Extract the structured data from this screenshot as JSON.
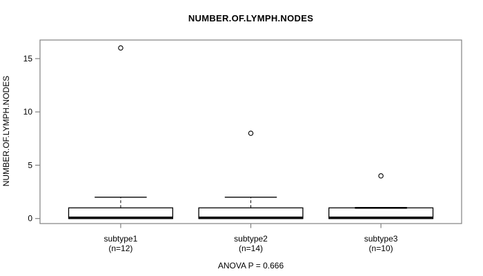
{
  "chart_data": {
    "type": "boxplot",
    "title": "NUMBER.OF.LYMPH.NODES",
    "ylabel": "NUMBER.OF.LYMPH.NODES",
    "annotation": "ANOVA P = 0.666",
    "anova_p": "0.666",
    "yticks": [
      0,
      5,
      10,
      15
    ],
    "ylim": [
      0,
      16
    ],
    "grid": false,
    "legend": "none",
    "groups": [
      {
        "label": "subtype1",
        "sublabel": "(n=12)",
        "n": 12,
        "q1": 0,
        "median": 0,
        "q3": 1,
        "whisker_low": 0,
        "whisker_high": 2,
        "outliers": [
          16
        ]
      },
      {
        "label": "subtype2",
        "sublabel": "(n=14)",
        "n": 14,
        "q1": 0,
        "median": 0,
        "q3": 1,
        "whisker_low": 0,
        "whisker_high": 2,
        "outliers": [
          8
        ]
      },
      {
        "label": "subtype3",
        "sublabel": "(n=10)",
        "n": 10,
        "q1": 0,
        "median": 0,
        "q3": 1,
        "whisker_low": 0,
        "whisker_high": 1,
        "outliers": [
          4
        ]
      }
    ],
    "colors": {
      "box_fill": "#ffffff",
      "line": "#000000",
      "frame": "#808080",
      "background": "#ffffff"
    }
  }
}
